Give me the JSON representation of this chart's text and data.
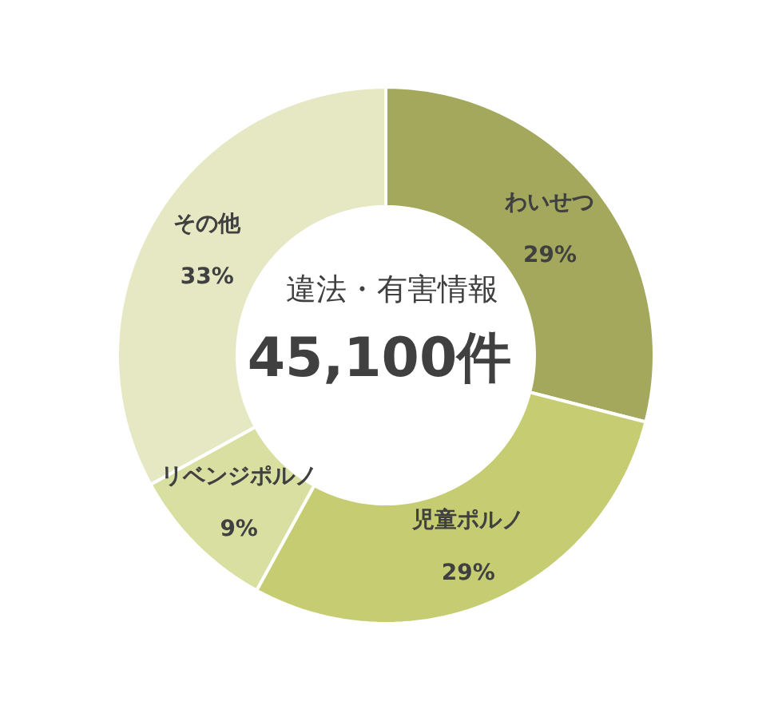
{
  "chart_data": {
    "type": "donut",
    "title": "違法・有害情報",
    "annotations": [
      "45,100件"
    ],
    "categories": [
      "わいせつ",
      "児童ポルノ",
      "リベンジポルノ",
      "その他"
    ],
    "values": [
      29,
      29,
      9,
      33
    ],
    "value_labels": [
      "29%",
      "29%",
      "9%",
      "33%"
    ],
    "colors": [
      "#a4a85c",
      "#c5cc72",
      "#d8dfa0",
      "#e5e8c3"
    ],
    "legend": false
  }
}
